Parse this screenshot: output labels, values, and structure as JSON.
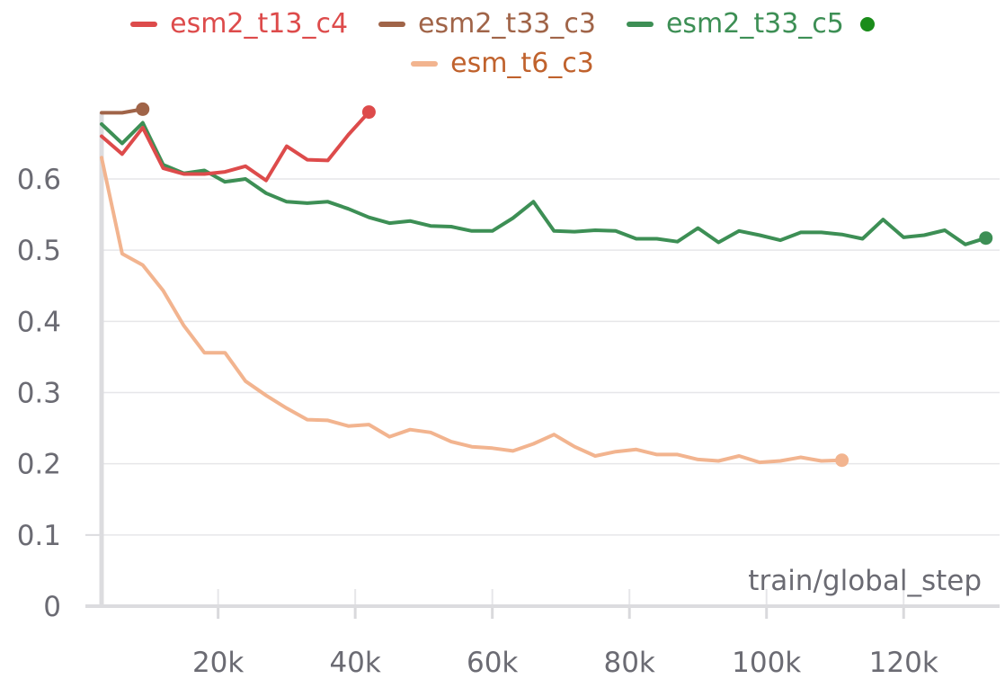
{
  "chart_data": {
    "type": "line",
    "xlabel": "train/global_step",
    "ylabel": "",
    "xlim": [
      3000,
      134000
    ],
    "ylim": [
      0,
      0.7
    ],
    "grid": true,
    "legend_position": "top",
    "x_ticks": [
      {
        "value": 20000,
        "label": "20k"
      },
      {
        "value": 40000,
        "label": "40k"
      },
      {
        "value": 60000,
        "label": "60k"
      },
      {
        "value": 80000,
        "label": "80k"
      },
      {
        "value": 100000,
        "label": "100k"
      },
      {
        "value": 120000,
        "label": "120k"
      }
    ],
    "y_ticks": [
      {
        "value": 0,
        "label": "0"
      },
      {
        "value": 0.1,
        "label": "0.1"
      },
      {
        "value": 0.2,
        "label": "0.2"
      },
      {
        "value": 0.3,
        "label": "0.3"
      },
      {
        "value": 0.4,
        "label": "0.4"
      },
      {
        "value": 0.5,
        "label": "0.5"
      },
      {
        "value": 0.6,
        "label": "0.6"
      }
    ],
    "series": [
      {
        "name": "esm2_t13_c4",
        "color": "#dd4b4b",
        "label_color": "#dd4b4b",
        "x": [
          3000,
          6000,
          9000,
          12000,
          15000,
          18000,
          21000,
          24000,
          27000,
          30000,
          33000,
          36000,
          39000,
          42000
        ],
        "values": [
          0.66,
          0.635,
          0.672,
          0.615,
          0.607,
          0.607,
          0.61,
          0.618,
          0.598,
          0.646,
          0.627,
          0.626,
          0.662,
          0.694
        ]
      },
      {
        "name": "esm2_t33_c3",
        "color": "#a06448",
        "label_color": "#a06448",
        "x": [
          3000,
          6000,
          9000
        ],
        "values": [
          0.693,
          0.693,
          0.698
        ]
      },
      {
        "name": "esm2_t33_c5",
        "color": "#3d8f55",
        "label_color": "#3d8f55",
        "highlight_marker": true,
        "highlight_color": "#1a8c1a",
        "x": [
          3000,
          6000,
          9000,
          12000,
          15000,
          18000,
          21000,
          24000,
          27000,
          30000,
          33000,
          36000,
          39000,
          42000,
          45000,
          48000,
          51000,
          54000,
          57000,
          60000,
          63000,
          66000,
          69000,
          72000,
          75000,
          78000,
          81000,
          84000,
          87000,
          90000,
          93000,
          96000,
          99000,
          102000,
          105000,
          108000,
          111000,
          114000,
          117000,
          120000,
          123000,
          126000,
          129000,
          132000
        ],
        "values": [
          0.677,
          0.65,
          0.679,
          0.62,
          0.608,
          0.612,
          0.596,
          0.6,
          0.58,
          0.568,
          0.566,
          0.568,
          0.558,
          0.546,
          0.538,
          0.541,
          0.534,
          0.533,
          0.527,
          0.527,
          0.545,
          0.568,
          0.527,
          0.526,
          0.528,
          0.527,
          0.516,
          0.516,
          0.512,
          0.531,
          0.511,
          0.527,
          0.521,
          0.514,
          0.525,
          0.525,
          0.522,
          0.516,
          0.543,
          0.518,
          0.521,
          0.528,
          0.508,
          0.517
        ]
      },
      {
        "name": "esm_t6_c3",
        "color": "#f2b48f",
        "label_color": "#c0622d",
        "x": [
          3000,
          6000,
          9000,
          12000,
          15000,
          18000,
          21000,
          24000,
          27000,
          30000,
          33000,
          36000,
          39000,
          42000,
          45000,
          48000,
          51000,
          54000,
          57000,
          60000,
          63000,
          66000,
          69000,
          72000,
          75000,
          78000,
          81000,
          84000,
          87000,
          90000,
          93000,
          96000,
          99000,
          102000,
          105000,
          108000,
          111000
        ],
        "values": [
          0.63,
          0.495,
          0.479,
          0.443,
          0.394,
          0.356,
          0.356,
          0.316,
          0.296,
          0.278,
          0.262,
          0.261,
          0.253,
          0.255,
          0.238,
          0.248,
          0.244,
          0.231,
          0.224,
          0.222,
          0.218,
          0.228,
          0.241,
          0.224,
          0.211,
          0.217,
          0.22,
          0.213,
          0.213,
          0.206,
          0.204,
          0.211,
          0.202,
          0.204,
          0.209,
          0.204,
          0.205
        ]
      }
    ]
  }
}
